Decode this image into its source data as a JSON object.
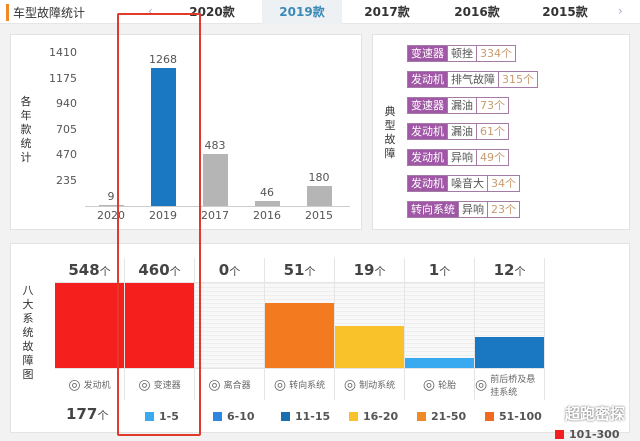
{
  "header": {
    "title": "车型故障统计",
    "tabs": [
      "2020款",
      "2019款",
      "2017款",
      "2016款",
      "2015款"
    ],
    "active": "2019款",
    "prev": "‹",
    "next": "›"
  },
  "yearly": {
    "axis_label": [
      "各",
      "年",
      "款",
      "统",
      "计"
    ],
    "yticks": [
      "1410",
      "1175",
      "940",
      "705",
      "470",
      "235"
    ],
    "bars": [
      {
        "year": "2020",
        "value": 9,
        "label": "9",
        "color": "#b5b5b5"
      },
      {
        "year": "2019",
        "value": 1268,
        "label": "1268",
        "color": "#1a78c2"
      },
      {
        "year": "2017",
        "value": 483,
        "label": "483",
        "color": "#b5b5b5"
      },
      {
        "year": "2016",
        "value": 46,
        "label": "46",
        "color": "#b5b5b5"
      },
      {
        "year": "2015",
        "value": 180,
        "label": "180",
        "color": "#b5b5b5"
      }
    ],
    "ymax": 1410
  },
  "typical": {
    "label": [
      "典",
      "型",
      "故",
      "障"
    ],
    "items": [
      {
        "system": "变速器",
        "issue": "顿挫",
        "count": "334个"
      },
      {
        "system": "发动机",
        "issue": "排气故障",
        "count": "315个"
      },
      {
        "system": "变速器",
        "issue": "漏油",
        "count": "73个"
      },
      {
        "system": "发动机",
        "issue": "漏油",
        "count": "61个"
      },
      {
        "system": "发动机",
        "issue": "异响",
        "count": "49个"
      },
      {
        "system": "发动机",
        "issue": "噪音大",
        "count": "34个"
      },
      {
        "system": "转向系统",
        "issue": "异响",
        "count": "23个"
      }
    ]
  },
  "systems": {
    "label": [
      "八",
      "大",
      "系",
      "统",
      "故",
      "障",
      "图"
    ],
    "unit": "个",
    "cols": [
      {
        "count": "548",
        "name": "发动机",
        "icon": "engine-icon",
        "fill": 100,
        "color": "#f5201e"
      },
      {
        "count": "460",
        "name": "变速器",
        "icon": "gear-shift-icon",
        "fill": 100,
        "color": "#f5201e"
      },
      {
        "count": "0",
        "name": "离合器",
        "icon": "clutch-pedal-icon",
        "fill": 0,
        "color": "#ccc"
      },
      {
        "count": "51",
        "name": "转向系统",
        "icon": "steering-wheel-icon",
        "fill": 76,
        "color": "#f47a20"
      },
      {
        "count": "19",
        "name": "制动系统",
        "icon": "brake-disc-icon",
        "fill": 50,
        "color": "#f9c22a"
      },
      {
        "count": "1",
        "name": "轮胎",
        "icon": "tire-icon",
        "fill": 12,
        "color": "#3aaaf0"
      },
      {
        "count": "12",
        "name": "前后桥及悬挂系统",
        "icon": "axle-icon",
        "fill": 37,
        "color": "#1a78c2"
      }
    ],
    "extra_count": "177"
  },
  "legend": [
    {
      "range": "1-5",
      "color": "#3aaaf0"
    },
    {
      "range": "6-10",
      "color": "#2f86e0"
    },
    {
      "range": "11-15",
      "color": "#1a6fb0"
    },
    {
      "range": "16-20",
      "color": "#f9c22a"
    },
    {
      "range": "21-50",
      "color": "#f08a24"
    },
    {
      "range": "51-100",
      "color": "#f06a20"
    },
    {
      "range": "101-300",
      "color": "#f5201e"
    }
  ],
  "watermark": "超跑密探"
}
